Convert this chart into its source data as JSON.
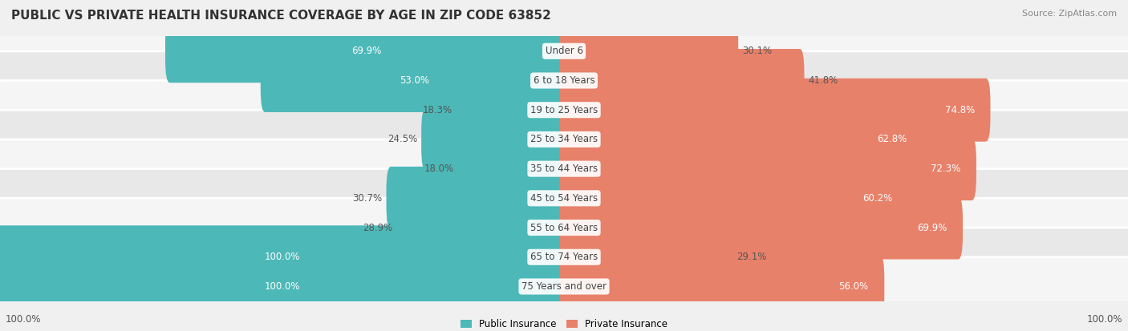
{
  "title": "PUBLIC VS PRIVATE HEALTH INSURANCE COVERAGE BY AGE IN ZIP CODE 63852",
  "source": "Source: ZipAtlas.com",
  "categories": [
    "Under 6",
    "6 to 18 Years",
    "19 to 25 Years",
    "25 to 34 Years",
    "35 to 44 Years",
    "45 to 54 Years",
    "55 to 64 Years",
    "65 to 74 Years",
    "75 Years and over"
  ],
  "public_values": [
    69.9,
    53.0,
    18.3,
    24.5,
    18.0,
    30.7,
    28.9,
    100.0,
    100.0
  ],
  "private_values": [
    30.1,
    41.8,
    74.8,
    62.8,
    72.3,
    60.2,
    69.9,
    29.1,
    56.0
  ],
  "public_color": "#4db8b8",
  "private_color": "#e8816a",
  "bg_color": "#f0f0f0",
  "row_bg_color_1": "#f5f5f5",
  "row_bg_color_2": "#e8e8e8",
  "title_fontsize": 11,
  "label_fontsize": 8.5,
  "value_fontsize": 8.5,
  "source_fontsize": 8,
  "legend_fontsize": 8.5,
  "bar_height": 0.55,
  "axis_label_left": "100.0%",
  "axis_label_right": "100.0%"
}
